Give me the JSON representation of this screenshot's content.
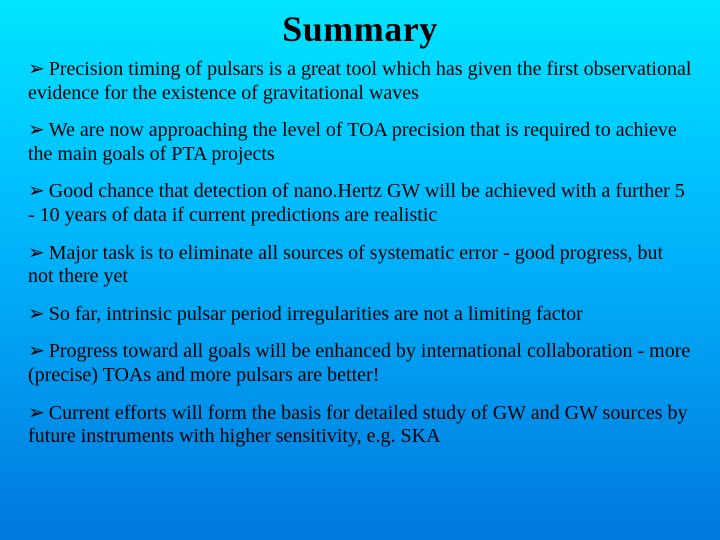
{
  "title": "Summary",
  "bullet_marker": "➢",
  "bullets": [
    "Precision timing of pulsars is a great tool which has given the first observational evidence for the existence of gravitational waves",
    "We are now approaching the level of TOA precision that is required to achieve the main goals of PTA projects",
    "Good chance that detection of nano.Hertz GW will be achieved with a further 5 - 10 years of data if current predictions are realistic",
    "Major task is to eliminate all sources of systematic error - good progress, but not there yet",
    "So far, intrinsic pulsar period irregularities are not a limiting factor",
    "Progress toward all goals will be enhanced by international collaboration - more (precise) TOAs and more pulsars are better!",
    "Current efforts will form the basis for detailed study of GW and GW sources by future instruments with higher sensitivity, e.g. SKA"
  ],
  "colors": {
    "text": "#000000",
    "bg_top": "#00e5ff",
    "bg_bottom": "#0077dd"
  },
  "typography": {
    "title_fontsize": 36,
    "body_fontsize": 20,
    "font_family": "Times New Roman"
  }
}
